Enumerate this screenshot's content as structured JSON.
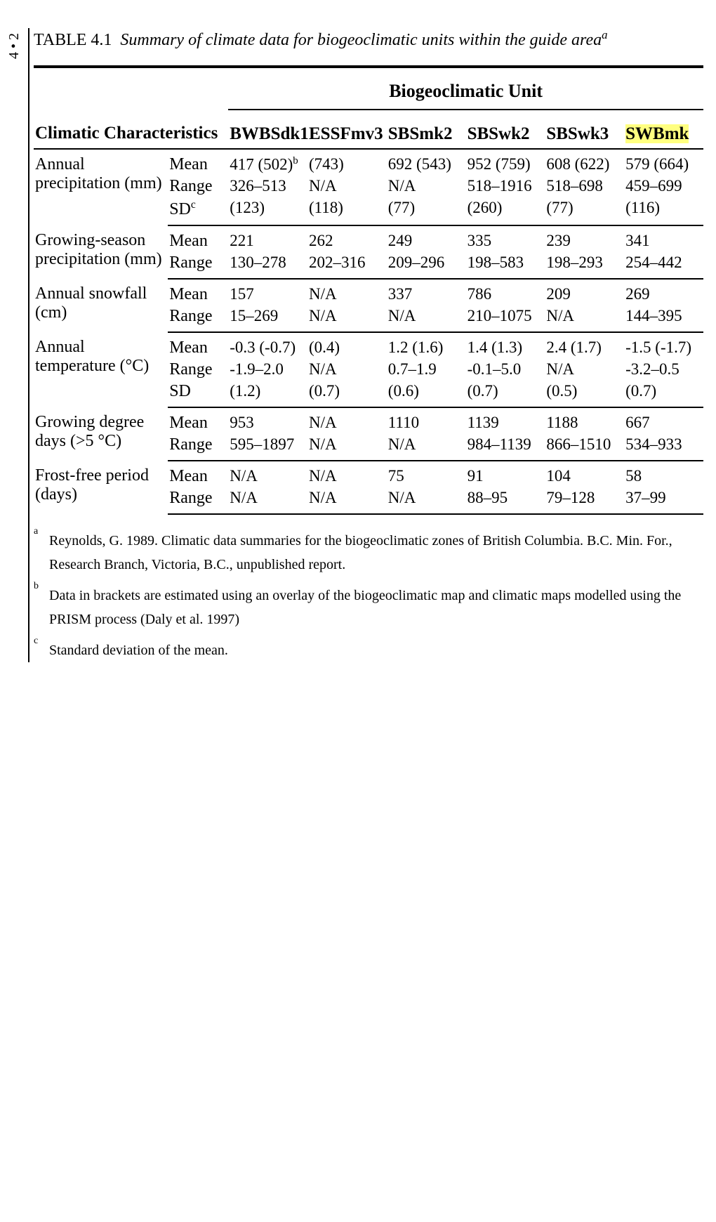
{
  "page_number": "4 • 2",
  "caption": {
    "table_num": "TABLE 4.1",
    "title": "Summary of climate data for biogeoclimatic units within the guide area",
    "title_sup": "a"
  },
  "header": {
    "spanning": "Biogeoclimatic Unit",
    "characteristics": "Climatic Characteristics",
    "units": [
      "BWBSdk1",
      "ESSFmv3",
      "SBSmk2",
      "SBSwk2",
      "SBSwk3",
      "SWBmk"
    ]
  },
  "groups": [
    {
      "label": "Annual precipitation (mm)",
      "rows": [
        {
          "stat": "Mean",
          "stat_sup": "",
          "v": [
            "417 (502)",
            "(743)",
            "692 (543)",
            "952 (759)",
            "608 (622)",
            "579 (664)"
          ],
          "v0_sup": "b"
        },
        {
          "stat": "Range",
          "v": [
            "326–513",
            "N/A",
            "N/A",
            "518–1916",
            "518–698",
            "459–699"
          ]
        },
        {
          "stat": "SD",
          "stat_sup": "c",
          "v": [
            "(123)",
            "(118)",
            "(77)",
            "(260)",
            "(77)",
            "(116)"
          ]
        }
      ]
    },
    {
      "label": "Growing-season precipitation (mm)",
      "rows": [
        {
          "stat": "Mean",
          "v": [
            "221",
            "262",
            "249",
            "335",
            "239",
            "341"
          ]
        },
        {
          "stat": "Range",
          "v": [
            "130–278",
            "202–316",
            "209–296",
            "198–583",
            "198–293",
            "254–442"
          ]
        }
      ]
    },
    {
      "label": "Annual snowfall (cm)",
      "rows": [
        {
          "stat": "Mean",
          "v": [
            "157",
            "N/A",
            "337",
            "786",
            "209",
            "269"
          ]
        },
        {
          "stat": "Range",
          "v": [
            "15–269",
            "N/A",
            "N/A",
            "210–1075",
            "N/A",
            "144–395"
          ]
        }
      ]
    },
    {
      "label": "Annual temperature (°C)",
      "rows": [
        {
          "stat": "Mean",
          "v": [
            "-0.3 (-0.7)",
            "(0.4)",
            "1.2 (1.6)",
            "1.4 (1.3)",
            "2.4 (1.7)",
            "-1.5 (-1.7)"
          ]
        },
        {
          "stat": "Range",
          "v": [
            "-1.9–2.0",
            "N/A",
            "0.7–1.9",
            "-0.1–5.0",
            "N/A",
            "-3.2–0.5"
          ]
        },
        {
          "stat": "SD",
          "v": [
            "(1.2)",
            "(0.7)",
            "(0.6)",
            "(0.7)",
            "(0.5)",
            "(0.7)"
          ]
        }
      ]
    },
    {
      "label": "Growing degree days (>5 °C)",
      "rows": [
        {
          "stat": "Mean",
          "v": [
            "953",
            "N/A",
            "1110",
            "1139",
            "1188",
            "667"
          ]
        },
        {
          "stat": "Range",
          "v": [
            "595–1897",
            "N/A",
            "N/A",
            "984–1139",
            "866–1510",
            "534–933"
          ]
        }
      ]
    },
    {
      "label": "Frost-free period (days)",
      "rows": [
        {
          "stat": "Mean",
          "v": [
            "N/A",
            "N/A",
            "75",
            "91",
            "104",
            "58"
          ]
        },
        {
          "stat": "Range",
          "v": [
            "N/A",
            "N/A",
            "N/A",
            "88–95",
            "79–128",
            "37–99"
          ]
        }
      ]
    }
  ],
  "footnotes": [
    {
      "mark": "a",
      "text": "Reynolds, G. 1989. Climatic data summaries for the biogeoclimatic zones of British Columbia. B.C. Min. For., Research Branch, Victoria, B.C., unpublished report."
    },
    {
      "mark": "b",
      "text": "Data in brackets are estimated using an overlay of the biogeoclimatic map and climatic maps modelled using the PRISM process (Daly et al. 1997)"
    },
    {
      "mark": "c",
      "text": "Standard deviation of the mean."
    }
  ],
  "highlight_unit_index": 5,
  "colors": {
    "highlight": "#ffff80",
    "rule": "#000000",
    "bg": "#ffffff"
  }
}
